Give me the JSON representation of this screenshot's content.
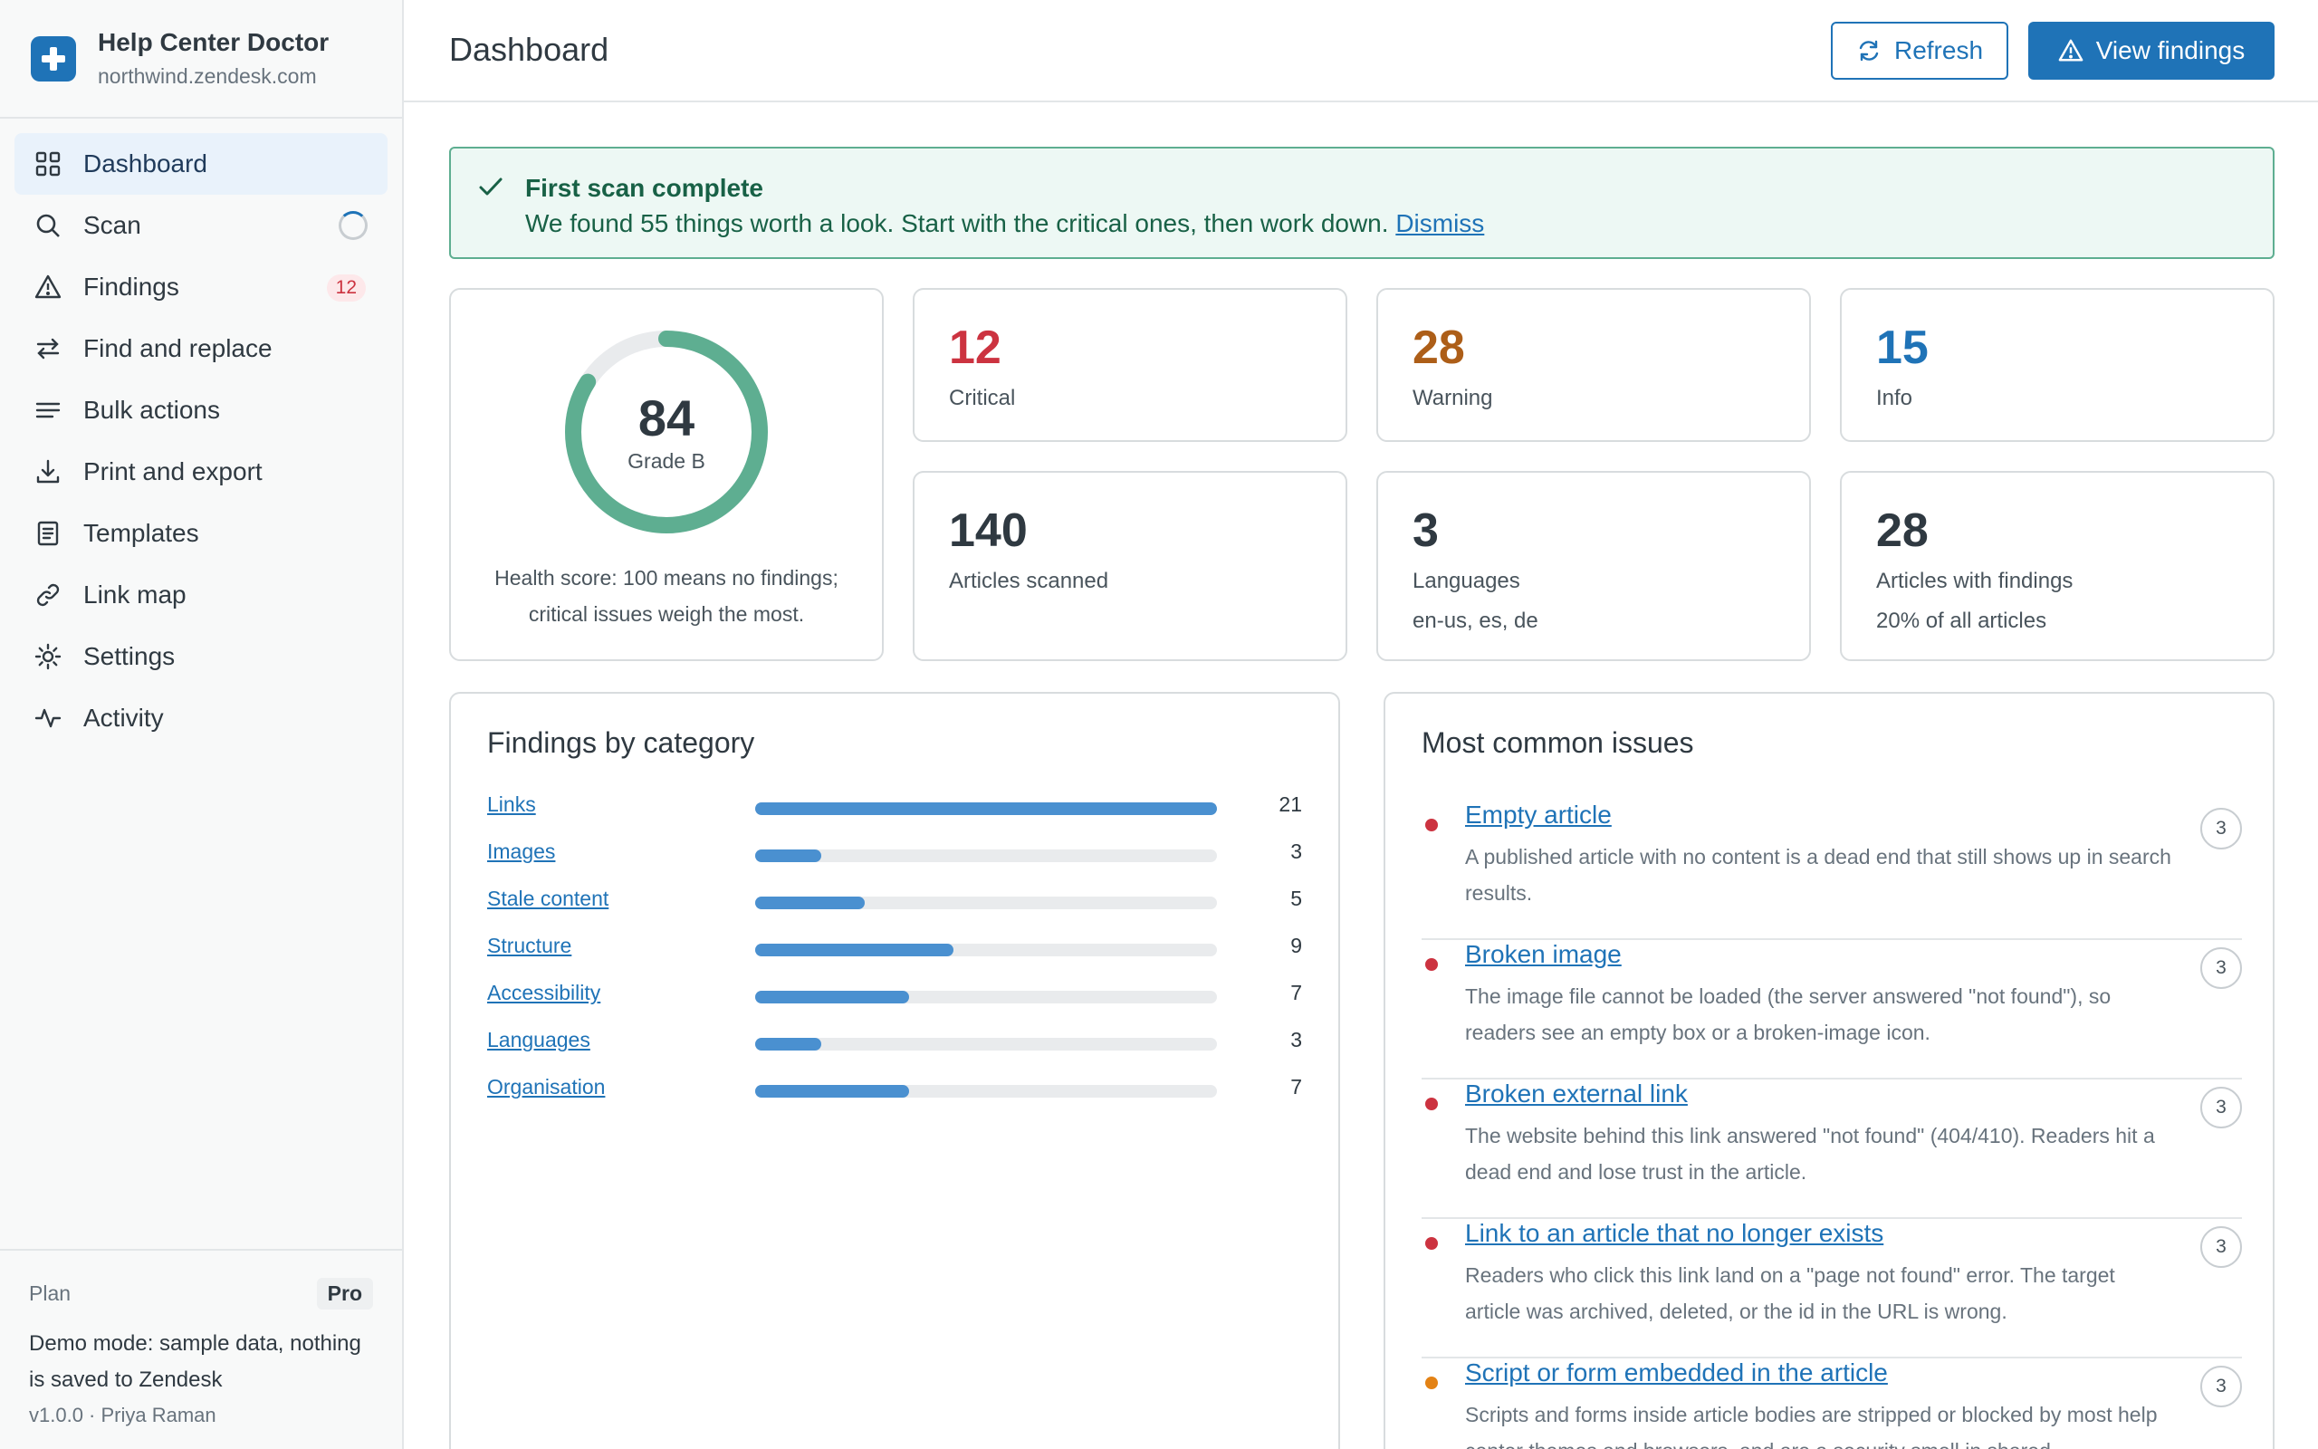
{
  "app": {
    "title": "Help Center Doctor",
    "subtitle": "northwind.zendesk.com"
  },
  "nav": [
    {
      "label": "Dashboard",
      "icon": "grid-icon",
      "active": true
    },
    {
      "label": "Scan",
      "icon": "search-icon",
      "status": "loading-spinner"
    },
    {
      "label": "Findings",
      "icon": "warning-icon",
      "badge": "12"
    },
    {
      "label": "Find and replace",
      "icon": "swap-arrows-icon"
    },
    {
      "label": "Bulk actions",
      "icon": "list-icon"
    },
    {
      "label": "Print and export",
      "icon": "download-icon"
    },
    {
      "label": "Templates",
      "icon": "document-icon"
    },
    {
      "label": "Link map",
      "icon": "link-icon"
    },
    {
      "label": "Settings",
      "icon": "gear-icon"
    },
    {
      "label": "Activity",
      "icon": "activity-icon"
    }
  ],
  "footer": {
    "plan_label": "Plan",
    "plan_value": "Pro",
    "demo_text": "Demo mode: sample data, nothing is saved to Zendesk",
    "version": "v1.0.0 · Priya Raman"
  },
  "header": {
    "title": "Dashboard",
    "refresh_label": "Refresh",
    "findings_label": "View findings"
  },
  "banner": {
    "title": "First scan complete",
    "text": "We found 55 things worth a look. Start with the critical ones, then work down.",
    "dismiss_label": "Dismiss"
  },
  "health": {
    "score": "84",
    "score_value": 84,
    "grade": "Grade B",
    "note": "Health score: 100 means no findings; critical issues weigh the most.",
    "ring_color": "#5eae91"
  },
  "stats": {
    "critical": {
      "value": "12",
      "label": "Critical",
      "color": "#cc3340"
    },
    "warning": {
      "value": "28",
      "label": "Warning",
      "color": "#ad5e18"
    },
    "info": {
      "value": "15",
      "label": "Info",
      "color": "#1f73b7"
    },
    "articles": {
      "value": "140",
      "label": "Articles scanned"
    },
    "languages": {
      "value": "3",
      "label": "Languages",
      "sub": "en-us, es, de"
    },
    "with_findings": {
      "value": "28",
      "label": "Articles with findings",
      "sub": "20% of all articles"
    }
  },
  "categories": {
    "title": "Findings by category",
    "items": [
      {
        "label": "Links",
        "count": "21",
        "value": 21
      },
      {
        "label": "Images",
        "count": "3",
        "value": 3
      },
      {
        "label": "Stale content",
        "count": "5",
        "value": 5
      },
      {
        "label": "Structure",
        "count": "9",
        "value": 9
      },
      {
        "label": "Accessibility",
        "count": "7",
        "value": 7
      },
      {
        "label": "Languages",
        "count": "3",
        "value": 3
      },
      {
        "label": "Organisation",
        "count": "7",
        "value": 7
      }
    ],
    "max": 21
  },
  "issues": {
    "title": "Most common issues",
    "items": [
      {
        "title": "Empty article",
        "desc": "A published article with no content is a dead end that still shows up in search results.",
        "count": "3",
        "severity_color": "#cc3340"
      },
      {
        "title": "Broken image",
        "desc": "The image file cannot be loaded (the server answered \"not found\"), so readers see an empty box or a broken-image icon.",
        "count": "3",
        "severity_color": "#cc3340"
      },
      {
        "title": "Broken external link",
        "desc": "The website behind this link answered \"not found\" (404/410). Readers hit a dead end and lose trust in the article.",
        "count": "3",
        "severity_color": "#cc3340"
      },
      {
        "title": "Link to an article that no longer exists",
        "desc": "Readers who click this link land on a \"page not found\" error. The target article was archived, deleted, or the id in the URL is wrong.",
        "count": "3",
        "severity_color": "#cc3340"
      },
      {
        "title": "Script or form embedded in the article",
        "desc": "Scripts and forms inside article bodies are stripped or blocked by most help center themes and browsers, and are a security smell in shared",
        "count": "3",
        "severity_color": "#e38215"
      }
    ]
  }
}
